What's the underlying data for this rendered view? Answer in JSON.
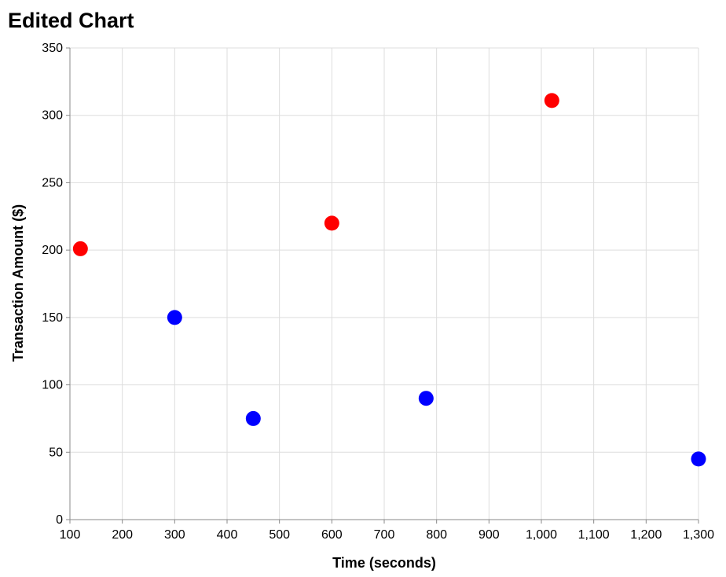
{
  "chart_data": {
    "type": "scatter",
    "title": "Edited Chart",
    "xlabel": "Time (seconds)",
    "ylabel": "Transaction Amount ($)",
    "xlim": [
      100,
      1300
    ],
    "ylim": [
      0,
      350
    ],
    "x_ticks": [
      "100",
      "200",
      "300",
      "400",
      "500",
      "600",
      "700",
      "800",
      "900",
      "1,000",
      "1,100",
      "1,200",
      "1,300"
    ],
    "y_ticks": [
      "0",
      "50",
      "100",
      "150",
      "200",
      "250",
      "300",
      "350"
    ],
    "grid": true,
    "legend": "none",
    "points": [
      {
        "x": 120,
        "y": 201,
        "color": "#ff0000"
      },
      {
        "x": 300,
        "y": 150,
        "color": "#0000ff"
      },
      {
        "x": 450,
        "y": 75,
        "color": "#0000ff"
      },
      {
        "x": 600,
        "y": 220,
        "color": "#ff0000"
      },
      {
        "x": 780,
        "y": 90,
        "color": "#0000ff"
      },
      {
        "x": 1020,
        "y": 311,
        "color": "#ff0000"
      },
      {
        "x": 1300,
        "y": 45,
        "color": "#0000ff"
      }
    ]
  }
}
